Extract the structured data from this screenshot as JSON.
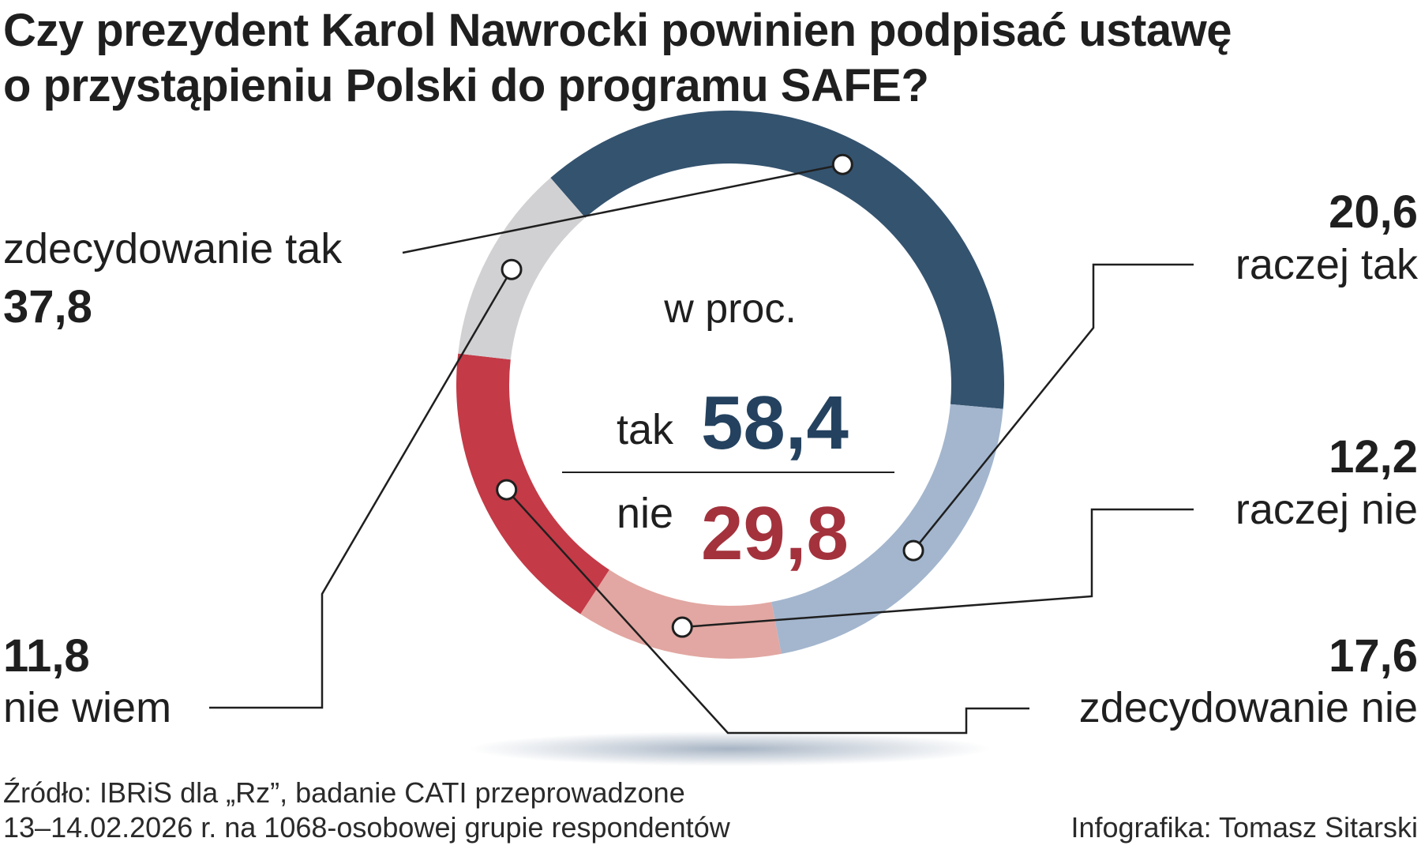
{
  "title": {
    "line1": "Czy prezydent Karol Nawrocki powinien podpisać ustawę",
    "line2": "o przystąpieniu Polski do programu SAFE?"
  },
  "chart_data": {
    "type": "donut",
    "unit_label": "w proc.",
    "segments": [
      {
        "label": "zdecydowanie tak",
        "value": 37.8,
        "display": "37,8",
        "color": "#34536f"
      },
      {
        "label": "raczej tak",
        "value": 20.6,
        "display": "20,6",
        "color": "#a3b6ce"
      },
      {
        "label": "raczej nie",
        "value": 12.2,
        "display": "12,2",
        "color": "#e2a7a2"
      },
      {
        "label": "zdecydowanie nie",
        "value": 17.6,
        "display": "17,6",
        "color": "#c43a47"
      },
      {
        "label": "nie wiem",
        "value": 11.8,
        "display": "11,8",
        "color": "#d1d1d3"
      }
    ],
    "totals": [
      {
        "label": "tak",
        "value": 58.4,
        "display": "58,4",
        "color": "#24425f"
      },
      {
        "label": "nie",
        "value": 29.8,
        "display": "29,8",
        "color": "#a3323d"
      }
    ]
  },
  "footer": {
    "source_line1": "Źródło: IBRiS dla „Rz”, badanie CATI przeprowadzone",
    "source_line2": "13–14.02.2026 r. na 1068-osobowej grupie respondentów",
    "credit": "Infografika: Tomasz Sitarski"
  }
}
